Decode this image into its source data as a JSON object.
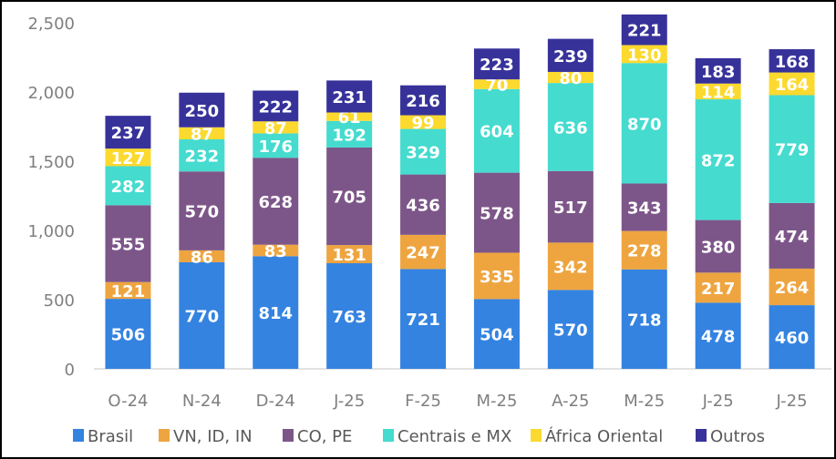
{
  "chart_data": {
    "type": "bar",
    "stacked": true,
    "title": "",
    "xlabel": "",
    "ylabel": "",
    "ylim": [
      0,
      2500
    ],
    "yticks": [
      0,
      500,
      1000,
      1500,
      2000,
      2500
    ],
    "ytick_labels": [
      "0",
      "500",
      "1,000",
      "1,500",
      "2,000",
      "2,500"
    ],
    "grid": false,
    "legend_position": "bottom",
    "categories": [
      "O-24",
      "N-24",
      "D-24",
      "J-25",
      "F-25",
      "M-25",
      "A-25",
      "M-25",
      "J-25",
      "J-25"
    ],
    "series": [
      {
        "name": "Brasil",
        "color": "#3483E0",
        "values": [
          506,
          770,
          814,
          763,
          721,
          504,
          570,
          718,
          478,
          460
        ]
      },
      {
        "name": "VN, ID, IN",
        "color": "#EEA540",
        "values": [
          121,
          86,
          83,
          131,
          247,
          335,
          342,
          278,
          217,
          264
        ]
      },
      {
        "name": "CO, PE",
        "color": "#7D5689",
        "values": [
          555,
          570,
          628,
          705,
          436,
          578,
          517,
          343,
          380,
          474
        ]
      },
      {
        "name": "Centrais e MX",
        "color": "#45DBCF",
        "values": [
          282,
          232,
          176,
          192,
          329,
          604,
          636,
          870,
          872,
          779
        ]
      },
      {
        "name": "África Oriental",
        "color": "#FCD92E",
        "values": [
          127,
          87,
          87,
          61,
          99,
          70,
          80,
          130,
          114,
          164
        ]
      },
      {
        "name": "Outros",
        "color": "#37329A",
        "values": [
          237,
          250,
          222,
          231,
          216,
          223,
          239,
          221,
          183,
          168
        ]
      }
    ]
  }
}
